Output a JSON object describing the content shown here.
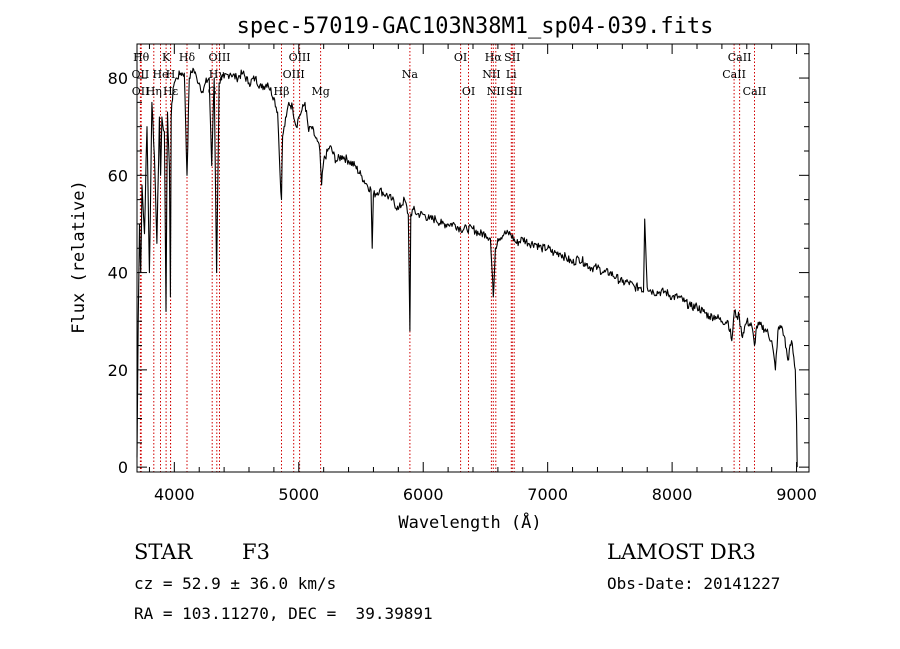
{
  "chart_data": {
    "type": "line",
    "title": "spec-57019-GAC103N38M1_sp04-039.fits",
    "xlabel": "Wavelength (Å)",
    "ylabel": "Flux (relative)",
    "xlim": [
      3700,
      9100
    ],
    "ylim": [
      -1,
      87
    ],
    "xticks": [
      4000,
      5000,
      6000,
      7000,
      8000,
      9000
    ],
    "yticks": [
      0,
      20,
      40,
      60,
      80
    ],
    "series": [
      {
        "name": "flux",
        "x": [
          3700,
          3710,
          3720,
          3730,
          3740,
          3760,
          3780,
          3800,
          3820,
          3840,
          3860,
          3880,
          3890,
          3900,
          3920,
          3933,
          3945,
          3960,
          3968,
          3975,
          3990,
          4000,
          4020,
          4050,
          4080,
          4102,
          4120,
          4150,
          4180,
          4200,
          4230,
          4250,
          4280,
          4300,
          4320,
          4340,
          4360,
          4380,
          4400,
          4450,
          4500,
          4550,
          4600,
          4650,
          4700,
          4750,
          4800,
          4830,
          4850,
          4861,
          4870,
          4900,
          4920,
          4950,
          4980,
          5000,
          5020,
          5050,
          5080,
          5100,
          5130,
          5150,
          5170,
          5183,
          5200,
          5250,
          5300,
          5350,
          5400,
          5450,
          5500,
          5550,
          5580,
          5590,
          5600,
          5650,
          5700,
          5750,
          5800,
          5850,
          5880,
          5893,
          5900,
          5920,
          5950,
          6000,
          6050,
          6100,
          6150,
          6200,
          6250,
          6300,
          6350,
          6400,
          6450,
          6500,
          6540,
          6563,
          6580,
          6600,
          6650,
          6700,
          6750,
          6800,
          6850,
          6900,
          6950,
          7000,
          7050,
          7100,
          7150,
          7200,
          7250,
          7300,
          7350,
          7400,
          7450,
          7500,
          7550,
          7600,
          7650,
          7700,
          7750,
          7770,
          7780,
          7800,
          7850,
          7900,
          7950,
          8000,
          8050,
          8100,
          8150,
          8200,
          8250,
          8300,
          8350,
          8400,
          8450,
          8480,
          8500,
          8520,
          8540,
          8560,
          8600,
          8640,
          8662,
          8680,
          8720,
          8760,
          8800,
          8830,
          8850,
          8880,
          8900,
          8930,
          8960,
          8990,
          9000,
          9005
        ],
        "values": [
          2,
          30,
          50,
          40,
          58,
          48,
          70,
          40,
          75,
          64,
          46,
          72,
          60,
          72,
          69,
          32,
          73,
          62,
          35,
          72,
          78,
          79,
          80,
          81,
          81,
          60,
          80,
          82,
          80,
          79,
          77,
          79,
          80,
          62,
          80,
          40,
          79,
          80,
          80,
          81,
          80,
          81,
          79,
          80,
          78,
          79,
          76,
          73,
          60,
          55,
          68,
          72,
          75,
          74,
          70,
          72,
          73,
          75,
          69,
          70,
          68,
          67,
          65,
          58,
          63,
          66,
          63,
          64,
          63,
          62,
          60,
          58,
          57,
          45,
          56,
          57,
          56,
          55,
          53,
          55,
          52,
          28,
          52,
          53,
          52,
          52,
          51,
          51,
          50,
          50,
          50,
          49,
          49,
          49,
          48,
          48,
          47,
          35,
          45,
          47,
          48,
          48,
          46,
          47,
          46,
          46,
          45,
          45,
          44,
          44,
          43,
          42,
          43,
          42,
          41,
          41,
          40,
          40,
          39,
          38,
          38,
          37,
          37,
          36,
          51,
          37,
          36,
          36,
          36,
          35,
          35,
          34,
          33,
          33,
          32,
          31,
          31,
          30,
          30,
          26,
          32,
          31,
          31,
          27,
          30,
          29,
          25,
          29,
          29,
          28,
          26,
          20,
          28,
          29,
          27,
          22,
          26,
          20,
          9,
          0
        ]
      }
    ],
    "line_markers": [
      {
        "label": "Hθ",
        "x": 3734,
        "row": 0
      },
      {
        "label": "OII",
        "x": 3727,
        "row": 1
      },
      {
        "label": "OII",
        "x": 3729,
        "row": 2
      },
      {
        "label": "Hη",
        "x": 3835,
        "row": 2
      },
      {
        "label": "He",
        "x": 3889,
        "row": 1
      },
      {
        "label": "K",
        "x": 3934,
        "row": 0
      },
      {
        "label": "H",
        "x": 3969,
        "row": 1
      },
      {
        "label": "Hε",
        "x": 3970,
        "row": 2
      },
      {
        "label": "Hδ",
        "x": 4102,
        "row": 0
      },
      {
        "label": "OIII",
        "x": 4363,
        "row": 0
      },
      {
        "label": "Hγ",
        "x": 4341,
        "row": 1
      },
      {
        "label": "G",
        "x": 4304,
        "row": 2
      },
      {
        "label": "Hβ",
        "x": 4861,
        "row": 2
      },
      {
        "label": "OIII",
        "x": 4959,
        "row": 1
      },
      {
        "label": "OIII",
        "x": 5007,
        "row": 0
      },
      {
        "label": "Mg",
        "x": 5175,
        "row": 2
      },
      {
        "label": "Na",
        "x": 5893,
        "row": 1
      },
      {
        "label": "OI",
        "x": 6300,
        "row": 0
      },
      {
        "label": "OI",
        "x": 6364,
        "row": 2
      },
      {
        "label": "Hα",
        "x": 6563,
        "row": 0
      },
      {
        "label": "NII",
        "x": 6548,
        "row": 1
      },
      {
        "label": "NII",
        "x": 6583,
        "row": 2
      },
      {
        "label": "SII",
        "x": 6716,
        "row": 0
      },
      {
        "label": "Li",
        "x": 6708,
        "row": 1
      },
      {
        "label": "SII",
        "x": 6731,
        "row": 2
      },
      {
        "label": "CaII",
        "x": 8542,
        "row": 0
      },
      {
        "label": "CaII",
        "x": 8498,
        "row": 1
      },
      {
        "label": "CaII",
        "x": 8662,
        "row": 2
      }
    ],
    "marker_line_color": "#d00000"
  },
  "footer": {
    "object_type": "STAR",
    "subclass": "F3",
    "survey": "LAMOST DR3",
    "redshift": "cz = 52.9 ± 36.0 km/s",
    "obs_date": "Obs-Date: 20141227",
    "coords": "RA = 103.11270, DEC =  39.39891"
  }
}
